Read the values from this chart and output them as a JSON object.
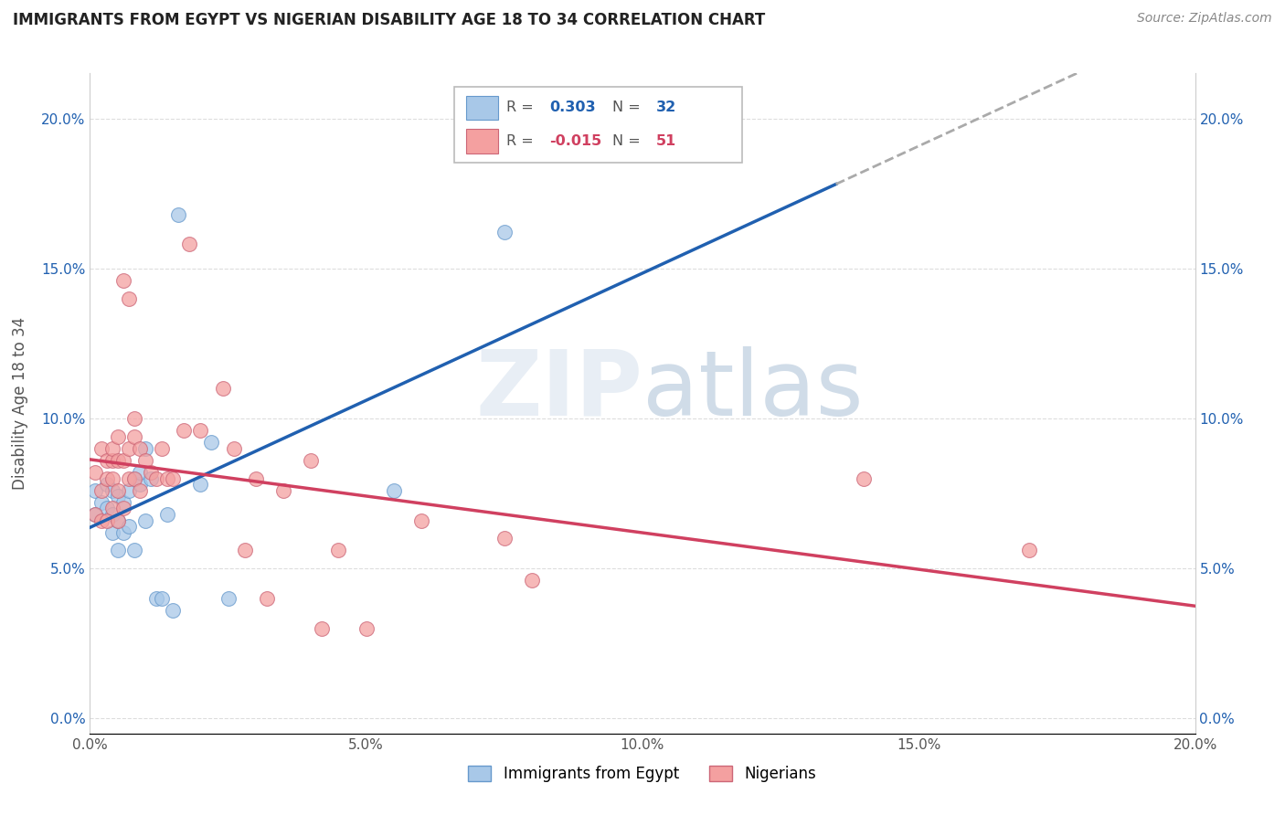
{
  "title": "IMMIGRANTS FROM EGYPT VS NIGERIAN DISABILITY AGE 18 TO 34 CORRELATION CHART",
  "source": "Source: ZipAtlas.com",
  "ylabel": "Disability Age 18 to 34",
  "legend_labels": [
    "Immigrants from Egypt",
    "Nigerians"
  ],
  "egypt_R": 0.303,
  "egypt_N": 32,
  "nigeria_R": -0.015,
  "nigeria_N": 51,
  "egypt_color": "#a8c8e8",
  "nigeria_color": "#f4a0a0",
  "egypt_line_color": "#2060b0",
  "nigeria_line_color": "#d04060",
  "egypt_x": [
    0.001,
    0.001,
    0.002,
    0.003,
    0.003,
    0.004,
    0.004,
    0.004,
    0.005,
    0.005,
    0.005,
    0.006,
    0.006,
    0.007,
    0.007,
    0.008,
    0.008,
    0.009,
    0.009,
    0.01,
    0.01,
    0.011,
    0.012,
    0.013,
    0.014,
    0.015,
    0.016,
    0.02,
    0.022,
    0.025,
    0.055,
    0.075
  ],
  "egypt_y": [
    0.068,
    0.076,
    0.072,
    0.07,
    0.078,
    0.062,
    0.068,
    0.076,
    0.056,
    0.066,
    0.074,
    0.062,
    0.072,
    0.064,
    0.076,
    0.056,
    0.08,
    0.078,
    0.082,
    0.066,
    0.09,
    0.08,
    0.04,
    0.04,
    0.068,
    0.036,
    0.168,
    0.078,
    0.092,
    0.04,
    0.076,
    0.162
  ],
  "nigeria_x": [
    0.001,
    0.001,
    0.002,
    0.002,
    0.002,
    0.003,
    0.003,
    0.003,
    0.004,
    0.004,
    0.004,
    0.004,
    0.005,
    0.005,
    0.005,
    0.005,
    0.006,
    0.006,
    0.006,
    0.007,
    0.007,
    0.007,
    0.008,
    0.008,
    0.008,
    0.009,
    0.009,
    0.01,
    0.011,
    0.012,
    0.013,
    0.014,
    0.015,
    0.017,
    0.018,
    0.02,
    0.024,
    0.026,
    0.028,
    0.03,
    0.032,
    0.035,
    0.04,
    0.042,
    0.045,
    0.05,
    0.06,
    0.075,
    0.08,
    0.14,
    0.17
  ],
  "nigeria_y": [
    0.068,
    0.082,
    0.066,
    0.076,
    0.09,
    0.066,
    0.08,
    0.086,
    0.07,
    0.08,
    0.086,
    0.09,
    0.066,
    0.076,
    0.086,
    0.094,
    0.07,
    0.086,
    0.146,
    0.08,
    0.09,
    0.14,
    0.08,
    0.094,
    0.1,
    0.076,
    0.09,
    0.086,
    0.082,
    0.08,
    0.09,
    0.08,
    0.08,
    0.096,
    0.158,
    0.096,
    0.11,
    0.09,
    0.056,
    0.08,
    0.04,
    0.076,
    0.086,
    0.03,
    0.056,
    0.03,
    0.066,
    0.06,
    0.046,
    0.08,
    0.056
  ],
  "xlim": [
    0.0,
    0.2
  ],
  "ylim": [
    -0.005,
    0.215
  ],
  "xtick_vals": [
    0.0,
    0.05,
    0.1,
    0.15,
    0.2
  ],
  "ytick_vals": [
    0.0,
    0.05,
    0.1,
    0.15,
    0.2
  ],
  "egypt_line_x0": 0.0,
  "egypt_line_x_solid_end": 0.135,
  "egypt_line_x_dash_end": 0.2,
  "watermark_zip": "ZIP",
  "watermark_atlas": "atlas",
  "background_color": "#ffffff",
  "grid_color": "#dddddd",
  "title_fontsize": 12,
  "axis_fontsize": 11,
  "tick_fontsize": 11
}
